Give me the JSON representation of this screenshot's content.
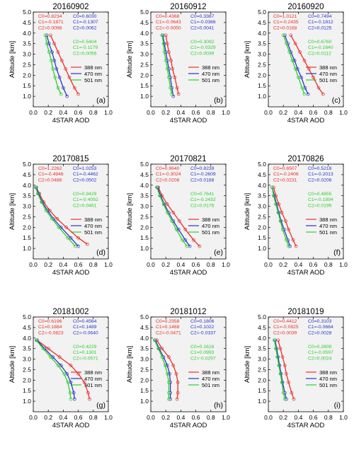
{
  "figure": {
    "xlabel": "4STAR AOD",
    "ylabel": "Altitude [km]",
    "xticks": [
      "0.0",
      "0.2",
      "0.4",
      "0.6",
      "0.8",
      "1.0"
    ],
    "yticks": [
      "1.0",
      "1.5",
      "2.0",
      "2.5",
      "3.0",
      "3.5",
      "4.0",
      "4.5",
      "5.0"
    ],
    "colors": {
      "388": "#e8302b",
      "470": "#2a35c8",
      "501": "#2fcf2f",
      "background": "#f2f2f2"
    },
    "legend": [
      {
        "key": "388",
        "label": "388 nm"
      },
      {
        "key": "470",
        "label": "470 nm"
      },
      {
        "key": "501",
        "label": "501 nm"
      }
    ]
  },
  "chart_data": [
    {
      "type": "scatter",
      "title": "20160902",
      "panel_label": "(a)",
      "xlim": [
        0.0,
        1.0
      ],
      "ylim": [
        0.5,
        5.0
      ],
      "grid": false,
      "legend": "right",
      "coeffs": {
        "388": [
          "C0=0.8234",
          "C1=-0.1871",
          "C2=0.0098"
        ],
        "470": [
          "C0=0.6030",
          "C1=-0.1307",
          "C2=0.0062"
        ],
        "501": [
          "C0=0.5404",
          "C1=-0.1179",
          "C2=0.0056"
        ]
      },
      "series": [
        {
          "key": "388",
          "x": [
            0.23,
            0.28,
            0.33,
            0.38,
            0.43,
            0.48,
            0.55,
            0.6
          ],
          "y": [
            3.9,
            3.5,
            3.1,
            2.7,
            2.3,
            1.9,
            1.4,
            1.1
          ]
        },
        {
          "key": "470",
          "x": [
            0.18,
            0.21,
            0.25,
            0.28,
            0.31,
            0.35,
            0.4,
            0.45
          ],
          "y": [
            3.9,
            3.5,
            3.1,
            2.7,
            2.3,
            1.9,
            1.4,
            1.0
          ]
        },
        {
          "key": "501",
          "x": [
            0.16,
            0.18,
            0.21,
            0.24,
            0.26,
            0.29,
            0.33,
            0.37
          ],
          "y": [
            3.9,
            3.5,
            3.1,
            2.7,
            2.3,
            1.9,
            1.4,
            1.1
          ]
        }
      ]
    },
    {
      "type": "scatter",
      "title": "20160912",
      "panel_label": "(b)",
      "xlim": [
        0.0,
        1.0
      ],
      "ylim": [
        0.5,
        5.0
      ],
      "grid": false,
      "legend": "right",
      "coeffs": {
        "388": [
          "C0=0.4368",
          "C1=-0.0643",
          "C2=-0.0050"
        ],
        "470": [
          "C0=0.3387",
          "C1=-0.0366",
          "C2=0.0041"
        ],
        "501": [
          "C0=0.3092",
          "C1=-0.0329",
          "C2=0.0039"
        ]
      },
      "series": [
        {
          "key": "388",
          "x": [
            0.2,
            0.22,
            0.24,
            0.27,
            0.29,
            0.32,
            0.35,
            0.37
          ],
          "y": [
            3.9,
            3.5,
            3.1,
            2.7,
            2.3,
            1.9,
            1.4,
            1.1
          ]
        },
        {
          "key": "470",
          "x": [
            0.16,
            0.18,
            0.2,
            0.22,
            0.24,
            0.26,
            0.28,
            0.3
          ],
          "y": [
            3.9,
            3.5,
            3.1,
            2.7,
            2.3,
            1.9,
            1.4,
            1.0
          ]
        },
        {
          "key": "501",
          "x": [
            0.15,
            0.17,
            0.18,
            0.2,
            0.22,
            0.24,
            0.26,
            0.28
          ],
          "y": [
            3.9,
            3.5,
            3.1,
            2.7,
            2.3,
            1.9,
            1.4,
            1.1
          ]
        }
      ]
    },
    {
      "type": "scatter",
      "title": "20160920",
      "panel_label": "(c)",
      "xlim": [
        0.0,
        1.0
      ],
      "ylim": [
        0.5,
        5.0
      ],
      "grid": false,
      "legend": "right",
      "coeffs": {
        "388": [
          "C0=1.0121",
          "C1=-0.2435",
          "C2=0.0168"
        ],
        "470": [
          "C0=0.7494",
          "C1=-0.1812",
          "C2=0.0125"
        ],
        "501": [
          "C0=0.6760",
          "C1=-0.1640",
          "C2=0.0112"
        ]
      },
      "series": [
        {
          "key": "388",
          "x": [
            0.3,
            0.36,
            0.42,
            0.48,
            0.54,
            0.6,
            0.67,
            0.73
          ],
          "y": [
            3.9,
            3.5,
            3.1,
            2.7,
            2.3,
            1.9,
            1.4,
            1.1
          ]
        },
        {
          "key": "470",
          "x": [
            0.22,
            0.26,
            0.3,
            0.35,
            0.39,
            0.44,
            0.49,
            0.53
          ],
          "y": [
            3.9,
            3.5,
            3.1,
            2.7,
            2.3,
            1.9,
            1.4,
            1.1
          ]
        },
        {
          "key": "501",
          "x": [
            0.2,
            0.24,
            0.28,
            0.32,
            0.36,
            0.4,
            0.45,
            0.48
          ],
          "y": [
            3.9,
            3.5,
            3.1,
            2.7,
            2.3,
            1.9,
            1.4,
            1.1
          ]
        }
      ]
    },
    {
      "type": "scatter",
      "title": "20170815",
      "panel_label": "(d)",
      "xlim": [
        0.0,
        1.0
      ],
      "ylim": [
        0.5,
        5.0
      ],
      "grid": false,
      "legend": "right",
      "coeffs": {
        "388": [
          "C0=1.2262",
          "C1=-0.4946",
          "C2=0.0486"
        ],
        "470": [
          "C0=1.0253",
          "C1=-0.4462",
          "C2=0.0502"
        ],
        "501": [
          "C0=0.9429",
          "C1=-0.4092",
          "C2=0.0461"
        ]
      },
      "series": [
        {
          "key": "388",
          "x": [
            0.04,
            0.08,
            0.14,
            0.22,
            0.32,
            0.44,
            0.6,
            0.72
          ],
          "y": [
            3.9,
            3.6,
            3.2,
            2.8,
            2.4,
            2.0,
            1.5,
            1.2
          ]
        },
        {
          "key": "470",
          "x": [
            0.04,
            0.07,
            0.12,
            0.19,
            0.27,
            0.37,
            0.5,
            0.6
          ],
          "y": [
            3.9,
            3.6,
            3.2,
            2.8,
            2.4,
            2.0,
            1.5,
            1.1
          ]
        },
        {
          "key": "501",
          "x": [
            0.03,
            0.06,
            0.11,
            0.17,
            0.25,
            0.34,
            0.46,
            0.56
          ],
          "y": [
            3.9,
            3.6,
            3.2,
            2.8,
            2.4,
            2.0,
            1.5,
            1.1
          ]
        }
      ]
    },
    {
      "type": "scatter",
      "title": "20170821",
      "panel_label": "(e)",
      "xlim": [
        0.0,
        1.0
      ],
      "ylim": [
        0.5,
        5.0
      ],
      "grid": false,
      "legend": "right",
      "coeffs": {
        "388": [
          "C0=0.9640",
          "C1=-0.3024",
          "C2=0.0208"
        ],
        "470": [
          "C0=0.8239",
          "C1=-0.2609",
          "C2=0.0188"
        ],
        "501": [
          "C0=0.7641",
          "C1=-0.2432",
          "C2=0.0176"
        ]
      },
      "series": [
        {
          "key": "388",
          "x": [
            0.1,
            0.15,
            0.22,
            0.3,
            0.38,
            0.46,
            0.57,
            0.65
          ],
          "y": [
            3.9,
            3.5,
            3.1,
            2.7,
            2.3,
            1.9,
            1.4,
            1.1
          ]
        },
        {
          "key": "470",
          "x": [
            0.09,
            0.13,
            0.18,
            0.24,
            0.3,
            0.37,
            0.46,
            0.52
          ],
          "y": [
            3.9,
            3.5,
            3.1,
            2.7,
            2.3,
            1.9,
            1.4,
            1.1
          ]
        },
        {
          "key": "501",
          "x": [
            0.08,
            0.12,
            0.17,
            0.22,
            0.28,
            0.34,
            0.42,
            0.48
          ],
          "y": [
            3.9,
            3.5,
            3.1,
            2.7,
            2.3,
            1.9,
            1.4,
            1.1
          ]
        }
      ]
    },
    {
      "type": "scatter",
      "title": "20170826",
      "panel_label": "(f)",
      "xlim": [
        0.0,
        1.0
      ],
      "ylim": [
        0.5,
        5.0
      ],
      "grid": false,
      "legend": "right",
      "coeffs": {
        "388": [
          "C0=0.6507",
          "C1=-0.2406",
          "C2=0.0231"
        ],
        "470": [
          "C0=0.5218",
          "C1=-0.2013",
          "C2=0.0206"
        ],
        "501": [
          "C0=0.4855",
          "C1=-0.1894",
          "C2=0.0196"
        ]
      },
      "series": [
        {
          "key": "388",
          "x": [
            0.07,
            0.1,
            0.14,
            0.18,
            0.23,
            0.27,
            0.33,
            0.37
          ],
          "y": [
            3.9,
            3.5,
            3.1,
            2.7,
            2.3,
            1.9,
            1.4,
            1.1
          ]
        },
        {
          "key": "470",
          "x": [
            0.05,
            0.08,
            0.11,
            0.14,
            0.17,
            0.21,
            0.26,
            0.29
          ],
          "y": [
            3.9,
            3.5,
            3.1,
            2.7,
            2.3,
            1.9,
            1.4,
            1.1
          ]
        },
        {
          "key": "501",
          "x": [
            0.05,
            0.07,
            0.1,
            0.13,
            0.16,
            0.19,
            0.24,
            0.27
          ],
          "y": [
            3.9,
            3.5,
            3.1,
            2.7,
            2.3,
            1.9,
            1.4,
            1.1
          ]
        }
      ]
    },
    {
      "type": "scatter",
      "title": "20181002",
      "panel_label": "(g)",
      "xlim": [
        0.0,
        1.0
      ],
      "ylim": [
        0.5,
        5.0
      ],
      "grid": false,
      "legend": "right",
      "coeffs": {
        "388": [
          "C0=0.6196",
          "C1=0.1884",
          "C2=-0.0823"
        ],
        "470": [
          "C0=0.4564",
          "C1=0.1489",
          "C2=-0.0640"
        ],
        "501": [
          "C0=0.4229",
          "C1=0.1301",
          "C2=-0.0571"
        ]
      },
      "series": [
        {
          "key": "388",
          "x": [
            0.05,
            0.2,
            0.35,
            0.5,
            0.6,
            0.68,
            0.73,
            0.75
          ],
          "y": [
            3.9,
            3.5,
            3.1,
            2.7,
            2.3,
            1.9,
            1.4,
            1.1
          ]
        },
        {
          "key": "470",
          "x": [
            0.05,
            0.15,
            0.26,
            0.37,
            0.45,
            0.5,
            0.54,
            0.55
          ],
          "y": [
            3.9,
            3.5,
            3.1,
            2.7,
            2.3,
            1.9,
            1.4,
            1.1
          ]
        },
        {
          "key": "501",
          "x": [
            0.04,
            0.13,
            0.23,
            0.33,
            0.41,
            0.46,
            0.49,
            0.5
          ],
          "y": [
            3.9,
            3.5,
            3.1,
            2.7,
            2.3,
            1.9,
            1.4,
            1.1
          ]
        }
      ]
    },
    {
      "type": "scatter",
      "title": "20181012",
      "panel_label": "(h)",
      "xlim": [
        0.0,
        1.0
      ],
      "ylim": [
        0.5,
        5.0
      ],
      "grid": false,
      "legend": "right",
      "coeffs": {
        "388": [
          "C0=0.2358",
          "C1=0.1468",
          "C2=-0.0471"
        ],
        "470": [
          "C0=0.1806",
          "C1=0.1022",
          "C2=-0.0337"
        ],
        "501": [
          "C0=0.1616",
          "C1=0.0993",
          "C2=-0.0297"
        ]
      },
      "series": [
        {
          "key": "388",
          "x": [
            0.08,
            0.15,
            0.24,
            0.3,
            0.34,
            0.36,
            0.36,
            0.35
          ],
          "y": [
            3.9,
            3.5,
            3.1,
            2.7,
            2.3,
            1.9,
            1.4,
            1.1
          ]
        },
        {
          "key": "470",
          "x": [
            0.06,
            0.11,
            0.17,
            0.22,
            0.25,
            0.26,
            0.26,
            0.26
          ],
          "y": [
            3.9,
            3.5,
            3.1,
            2.7,
            2.3,
            1.9,
            1.4,
            1.1
          ]
        },
        {
          "key": "501",
          "x": [
            0.05,
            0.1,
            0.15,
            0.19,
            0.22,
            0.24,
            0.24,
            0.24
          ],
          "y": [
            3.9,
            3.5,
            3.1,
            2.7,
            2.3,
            1.9,
            1.4,
            1.1
          ]
        }
      ]
    },
    {
      "type": "scatter",
      "title": "20181019",
      "panel_label": "(i)",
      "xlim": [
        0.0,
        1.0
      ],
      "ylim": [
        0.5,
        5.0
      ],
      "grid": false,
      "legend": "right",
      "coeffs": {
        "388": [
          "C0=0.4412",
          "C1=-0.0925",
          "C2=0.0039"
        ],
        "470": [
          "C0=0.3103",
          "C1=-0.0664",
          "C2=0.0028"
        ],
        "501": [
          "C0=0.2808",
          "C1=-0.0597",
          "C2=0.0024"
        ]
      },
      "series": [
        {
          "key": "388",
          "x": [
            0.13,
            0.16,
            0.19,
            0.22,
            0.24,
            0.27,
            0.31,
            0.34
          ],
          "y": [
            3.9,
            3.5,
            3.1,
            2.7,
            2.3,
            1.9,
            1.4,
            1.1
          ]
        },
        {
          "key": "470",
          "x": [
            0.09,
            0.11,
            0.13,
            0.15,
            0.17,
            0.19,
            0.22,
            0.24
          ],
          "y": [
            3.9,
            3.5,
            3.1,
            2.7,
            2.3,
            1.9,
            1.4,
            1.1
          ]
        },
        {
          "key": "501",
          "x": [
            0.08,
            0.1,
            0.12,
            0.14,
            0.16,
            0.18,
            0.2,
            0.22
          ],
          "y": [
            3.9,
            3.5,
            3.1,
            2.7,
            2.3,
            1.9,
            1.4,
            1.1
          ]
        }
      ]
    }
  ]
}
